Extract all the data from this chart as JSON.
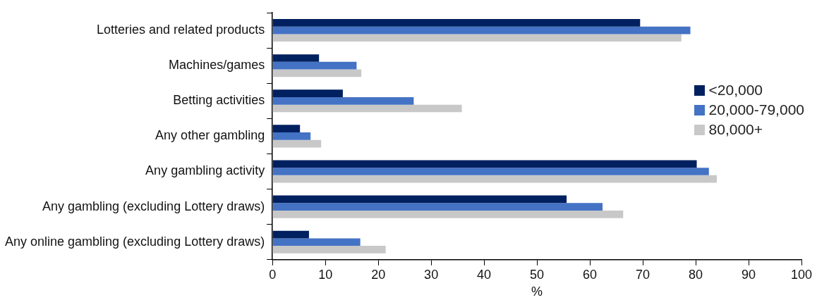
{
  "chart_data": {
    "type": "bar",
    "orientation": "horizontal",
    "xlabel": "%",
    "categories": [
      "Lotteries and related products",
      "Machines/games",
      "Betting activities",
      "Any other gambling",
      "Any gambling activity",
      "Any gambling (excluding Lottery draws)",
      "Any online gambling (excluding Lottery draws)"
    ],
    "series": [
      {
        "name": "<20,000",
        "color": "#002060",
        "values": [
          69.5,
          8.8,
          13.3,
          5.2,
          80.2,
          55.6,
          6.9
        ]
      },
      {
        "name": "20,000-79,000",
        "color": "#4472c4",
        "values": [
          79,
          15.9,
          26.7,
          7.2,
          82.5,
          62.4,
          16.6
        ]
      },
      {
        "name": "80,000+",
        "color": "#c8c8c8",
        "values": [
          77.3,
          16.8,
          35.8,
          9.2,
          84,
          66.3,
          21.4
        ]
      }
    ],
    "xlim": [
      0,
      100
    ],
    "xticks": [
      0,
      10,
      20,
      30,
      40,
      50,
      60,
      70,
      80,
      90,
      100
    ],
    "grid": false,
    "legend": "right"
  }
}
